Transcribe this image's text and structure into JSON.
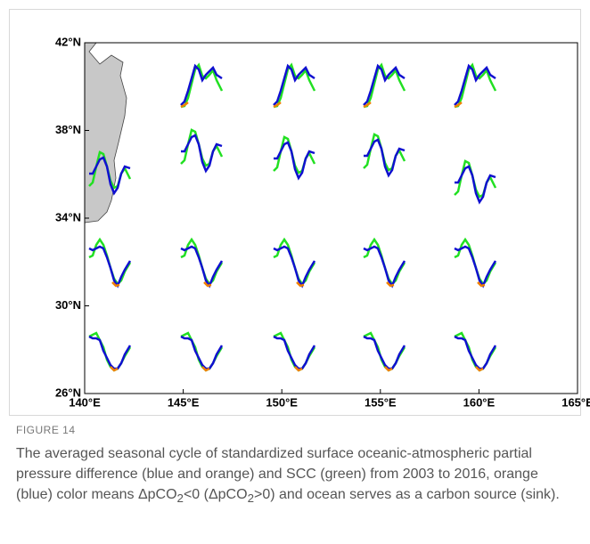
{
  "chart_data": {
    "type": "map",
    "xlim": [
      140,
      165
    ],
    "ylim": [
      26,
      42
    ],
    "xticks": [
      {
        "value": 140,
        "label": "140°E"
      },
      {
        "value": 145,
        "label": "145°E"
      },
      {
        "value": 150,
        "label": "150°E"
      },
      {
        "value": 155,
        "label": "155°E"
      },
      {
        "value": 160,
        "label": "160°E"
      },
      {
        "value": 165,
        "label": "165°E"
      }
    ],
    "yticks": [
      {
        "value": 26,
        "label": "26°N"
      },
      {
        "value": 30,
        "label": "30°N"
      },
      {
        "value": 34,
        "label": "34°N"
      },
      {
        "value": 38,
        "label": "38°N"
      },
      {
        "value": 42,
        "label": "42°N"
      }
    ]
  },
  "figure": {
    "label": "FIGURE 14",
    "caption": [
      "The averaged seasonal cycle of standardized surface oceanic-atmospheric partial pressure difference (blue and orange) and SCC (green) from 2003 to 2016, orange (blue) color means ΔpCO",
      "2",
      "<0 (ΔpCO",
      "2",
      ">0) and ocean serves as a carbon source (sink)."
    ]
  }
}
